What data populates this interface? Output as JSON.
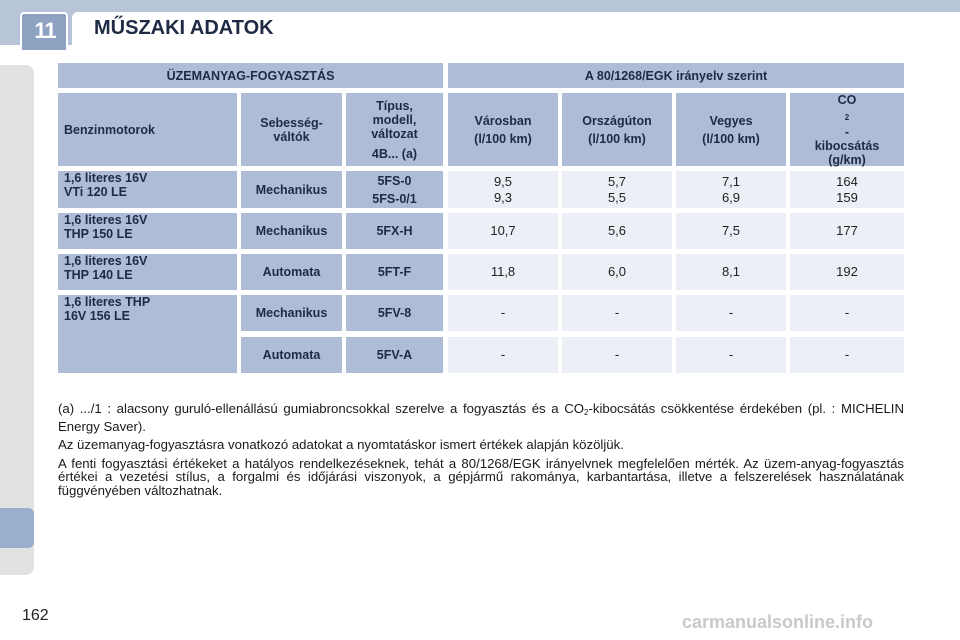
{
  "header": {
    "chapter": "11",
    "title": "MŰSZAKI ADATOK"
  },
  "table": {
    "group_left": "ÜZEMANYAG-FOGYASZTÁS",
    "group_right": "A 80/1268/EGK irányelv szerint",
    "col_engine": "Benzinmotorok",
    "col_gearbox": "Sebesség-\nváltók",
    "col_type_lines": [
      "Típus,",
      "modell,",
      "változat",
      "4B... (a)"
    ],
    "col_city": [
      "Városban",
      "(l/100 km)"
    ],
    "col_highway": [
      "Országúton",
      "(l/100 km)"
    ],
    "col_mixed": [
      "Vegyes",
      "(l/100 km)"
    ],
    "col_co2_a": "CO",
    "col_co2_sub": "2",
    "col_co2_b": "-",
    "col_co2_c": "kibocsátás",
    "col_co2_d": "(g/km)",
    "rows": [
      {
        "engine": [
          "1,6 literes 16V",
          "VTi 120 LE"
        ],
        "gearbox": "Mechanikus",
        "type": [
          "5FS-0",
          "5FS-0/1"
        ],
        "city": [
          "9,5",
          "9,3"
        ],
        "highway": [
          "5,7",
          "5,5"
        ],
        "mixed": [
          "7,1",
          "6,9"
        ],
        "co2": [
          "164",
          "159"
        ]
      },
      {
        "engine": [
          "1,6 literes 16V",
          "THP 150 LE"
        ],
        "gearbox": "Mechanikus",
        "type": "5FX-H",
        "city": "10,7",
        "highway": "5,6",
        "mixed": "7,5",
        "co2": "177"
      },
      {
        "engine": [
          "1,6 literes 16V",
          "THP 140 LE"
        ],
        "gearbox": "Automata",
        "type": "5FT-F",
        "city": "11,8",
        "highway": "6,0",
        "mixed": "8,1",
        "co2": "192"
      },
      {
        "engine": [
          "1,6 literes THP",
          "16V 156 LE"
        ],
        "gearbox": "Mechanikus",
        "type": "5FV-8",
        "city": "-",
        "highway": "-",
        "mixed": "-",
        "co2": "-"
      },
      {
        "gearbox": "Automata",
        "type": "5FV-A",
        "city": "-",
        "highway": "-",
        "mixed": "-",
        "co2": "-"
      }
    ]
  },
  "notes": {
    "note_a_part1": "(a) .../1 : alacsony guruló-ellenállású gumiabroncsokkal szerelve a fogyasztás és a CO",
    "note_a_sub": "2",
    "note_a_part2": "-kibocsátás csökkentése érdekében (pl. : MICHELIN Energy Saver).",
    "note_b": "Az üzemanyag-fogyasztásra vonatkozó adatokat a nyomtatáskor ismert értékek alapján közöljük.",
    "note_c": "A fenti fogyasztási értékeket a hatályos rendelkezéseknek, tehát a 80/1268/EGK irányelvnek megfelelően mérték. Az üzem-anyag-fogyasztás értékei a vezetési stílus, a forgalmi és időjárási viszonyok, a gépjármű rakománya, karbantartása, illetve a felszerelések használatának függvényében változhatnak."
  },
  "footer": {
    "page_number": "162",
    "watermark": "carmanualsonline.info"
  }
}
